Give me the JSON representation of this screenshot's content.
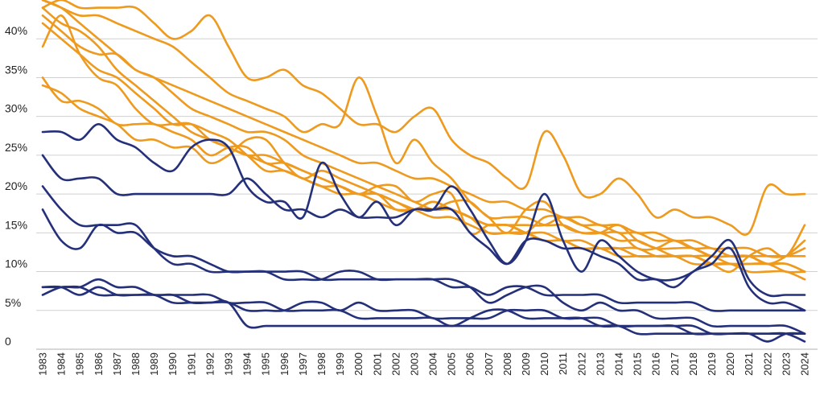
{
  "colors": {
    "orange": "#ee9a1e",
    "navy": "#24307a",
    "grid": "#d0d0d0",
    "text": "#222222"
  },
  "chart_data": {
    "type": "line",
    "title": "",
    "xlabel": "",
    "ylabel": "",
    "x": [
      1983,
      1984,
      1985,
      1986,
      1987,
      1988,
      1989,
      1990,
      1991,
      1992,
      1993,
      1994,
      1995,
      1996,
      1997,
      1998,
      1999,
      2000,
      2001,
      2002,
      2003,
      2004,
      2005,
      2006,
      2007,
      2008,
      2009,
      2010,
      2011,
      2012,
      2013,
      2014,
      2015,
      2016,
      2017,
      2018,
      2019,
      2020,
      2021,
      2022,
      2023,
      2024
    ],
    "x_tick_labels": [
      "1983",
      "1984",
      "1985",
      "1986",
      "1987",
      "1988",
      "1989",
      "1990",
      "1991",
      "1992",
      "1993",
      "1994",
      "1995",
      "1996",
      "1997",
      "1998",
      "1999",
      "2000",
      "2001",
      "2002",
      "2003",
      "2004",
      "2005",
      "2006",
      "2007",
      "2008",
      "2009",
      "2010",
      "2011",
      "2012",
      "2013",
      "2014",
      "2015",
      "2016",
      "2017",
      "2018",
      "2019",
      "2020",
      "2021",
      "2022",
      "2023",
      "2024"
    ],
    "ylim": [
      0,
      45
    ],
    "y_ticks": [
      0,
      5,
      10,
      15,
      20,
      25,
      30,
      35,
      40
    ],
    "y_tick_labels": [
      "0",
      "5%",
      "10%",
      "15%",
      "20%",
      "25%",
      "30%",
      "35%",
      "40%"
    ],
    "grid": "horizontal",
    "legend": "none",
    "series": [
      {
        "color": "orange",
        "values": [
          44,
          45,
          44,
          44,
          44,
          44,
          42,
          40,
          41,
          43,
          39,
          35,
          35,
          36,
          34,
          33,
          31,
          29,
          29,
          28,
          30,
          31,
          27,
          25,
          24,
          22,
          21,
          28,
          25,
          20,
          20,
          22,
          20,
          17,
          18,
          17,
          17,
          16,
          15,
          21,
          20,
          20
        ]
      },
      {
        "color": "orange",
        "values": [
          43,
          41,
          39,
          38,
          38,
          36,
          35,
          33,
          31,
          30,
          29,
          28,
          28,
          27,
          25,
          24,
          23,
          22,
          21,
          20,
          19,
          18,
          18,
          17,
          16,
          16,
          15,
          15,
          14,
          14,
          13,
          13,
          13,
          12,
          12,
          12,
          12,
          11,
          11,
          11,
          11,
          10
        ]
      },
      {
        "color": "orange",
        "values": [
          39,
          43,
          38,
          35,
          34,
          31,
          29,
          29,
          29,
          27,
          26,
          25,
          25,
          24,
          23,
          22,
          21,
          20,
          20,
          19,
          18,
          17,
          17,
          16,
          15,
          15,
          15,
          14,
          14,
          13,
          13,
          13,
          12,
          12,
          12,
          12,
          11,
          11,
          11,
          11,
          10,
          10
        ]
      },
      {
        "color": "orange",
        "values": [
          34,
          33,
          31,
          30,
          29,
          27,
          27,
          26,
          26,
          24,
          25,
          27,
          27,
          24,
          22,
          23,
          22,
          21,
          20,
          19,
          18,
          19,
          18,
          17,
          16,
          16,
          15,
          14,
          14,
          13,
          13,
          12,
          12,
          12,
          12,
          11,
          11,
          11,
          10,
          10,
          10,
          9
        ]
      },
      {
        "color": "orange",
        "values": [
          35,
          32,
          32,
          31,
          29,
          29,
          29,
          28,
          27,
          25,
          26,
          26,
          24,
          24,
          23,
          22,
          21,
          20,
          21,
          21,
          19,
          20,
          20,
          15,
          16,
          16,
          16,
          16,
          17,
          16,
          15,
          15,
          13,
          13,
          14,
          13,
          12,
          12,
          12,
          11,
          12,
          14
        ]
      },
      {
        "color": "orange",
        "values": [
          42,
          40,
          38,
          36,
          35,
          33,
          31,
          29,
          29,
          28,
          27,
          25,
          23,
          23,
          22,
          21,
          20,
          20,
          19,
          18,
          18,
          18,
          19,
          19,
          17,
          17,
          17,
          16,
          16,
          15,
          15,
          14,
          14,
          13,
          13,
          13,
          12,
          12,
          12,
          11,
          11,
          10
        ]
      },
      {
        "color": "orange",
        "values": [
          44,
          42,
          41,
          39,
          36,
          34,
          32,
          30,
          28,
          27,
          26,
          25,
          24,
          23,
          22,
          21,
          21,
          20,
          20,
          18,
          18,
          19,
          18,
          17,
          15,
          15,
          15,
          17,
          17,
          16,
          16,
          15,
          15,
          14,
          14,
          13,
          13,
          12,
          12,
          12,
          12,
          12
        ]
      },
      {
        "color": "orange",
        "values": [
          45,
          44,
          42,
          40,
          38,
          36,
          35,
          34,
          33,
          32,
          31,
          30,
          29,
          28,
          27,
          26,
          25,
          24,
          24,
          23,
          22,
          22,
          21,
          20,
          19,
          19,
          18,
          18,
          17,
          17,
          16,
          16,
          15,
          15,
          14,
          14,
          13,
          13,
          13,
          12,
          12,
          13
        ]
      },
      {
        "color": "orange",
        "values": [
          45,
          44,
          43,
          43,
          42,
          41,
          40,
          39,
          37,
          35,
          33,
          32,
          31,
          30,
          28,
          29,
          29,
          35,
          30,
          24,
          27,
          24,
          22,
          19,
          17,
          15,
          18,
          19,
          16,
          15,
          15,
          16,
          14,
          13,
          12,
          12,
          11,
          10,
          12,
          13,
          12,
          16
        ]
      },
      {
        "color": "navy",
        "values": [
          28,
          28,
          27,
          29,
          27,
          26,
          24,
          23,
          26,
          27,
          26,
          21,
          19,
          19,
          17,
          24,
          20,
          17,
          19,
          16,
          18,
          18,
          21,
          18,
          14,
          11,
          14,
          20,
          14,
          10,
          14,
          12,
          10,
          9,
          9,
          10,
          12,
          14,
          9,
          7,
          7,
          7
        ]
      },
      {
        "color": "navy",
        "values": [
          25,
          22,
          22,
          22,
          20,
          20,
          20,
          20,
          20,
          20,
          20,
          22,
          20,
          18,
          18,
          17,
          18,
          17,
          17,
          17,
          18,
          18,
          18,
          15,
          13,
          11,
          14,
          14,
          13,
          13,
          12,
          11,
          9,
          9,
          8,
          10,
          11,
          13,
          8,
          6,
          6,
          5
        ]
      },
      {
        "color": "navy",
        "values": [
          18,
          14,
          13,
          16,
          15,
          15,
          13,
          12,
          12,
          11,
          10,
          10,
          10,
          10,
          10,
          9,
          9,
          9,
          9,
          9,
          9,
          9,
          9,
          8,
          6,
          7,
          8,
          8,
          6,
          5,
          6,
          5,
          5,
          4,
          4,
          4,
          3,
          3,
          3,
          3,
          3,
          2
        ]
      },
      {
        "color": "navy",
        "values": [
          21,
          18,
          16,
          16,
          16,
          16,
          13,
          11,
          11,
          10,
          10,
          10,
          10,
          9,
          9,
          9,
          10,
          10,
          9,
          9,
          9,
          9,
          8,
          8,
          7,
          8,
          8,
          7,
          7,
          7,
          7,
          6,
          6,
          6,
          6,
          6,
          5,
          5,
          5,
          5,
          5,
          5
        ]
      },
      {
        "color": "navy",
        "values": [
          8,
          8,
          8,
          7,
          7,
          7,
          7,
          7,
          7,
          7,
          6,
          6,
          6,
          5,
          5,
          5,
          5,
          4,
          4,
          4,
          4,
          4,
          3,
          4,
          5,
          5,
          4,
          4,
          4,
          4,
          3,
          3,
          3,
          3,
          3,
          3,
          2,
          2,
          2,
          2,
          2,
          2
        ]
      },
      {
        "color": "navy",
        "values": [
          7,
          8,
          8,
          9,
          8,
          8,
          7,
          7,
          6,
          6,
          6,
          5,
          5,
          5,
          6,
          6,
          5,
          6,
          5,
          5,
          5,
          4,
          4,
          4,
          4,
          5,
          5,
          5,
          4,
          4,
          4,
          3,
          3,
          3,
          3,
          2,
          2,
          2,
          2,
          1,
          2,
          2
        ]
      },
      {
        "color": "navy",
        "values": [
          8,
          8,
          7,
          8,
          7,
          7,
          7,
          6,
          6,
          6,
          6,
          3,
          3,
          3,
          3,
          3,
          3,
          3,
          3,
          3,
          3,
          3,
          3,
          3,
          3,
          3,
          3,
          3,
          3,
          3,
          3,
          3,
          2,
          2,
          2,
          2,
          2,
          2,
          2,
          2,
          2,
          1
        ]
      }
    ]
  }
}
